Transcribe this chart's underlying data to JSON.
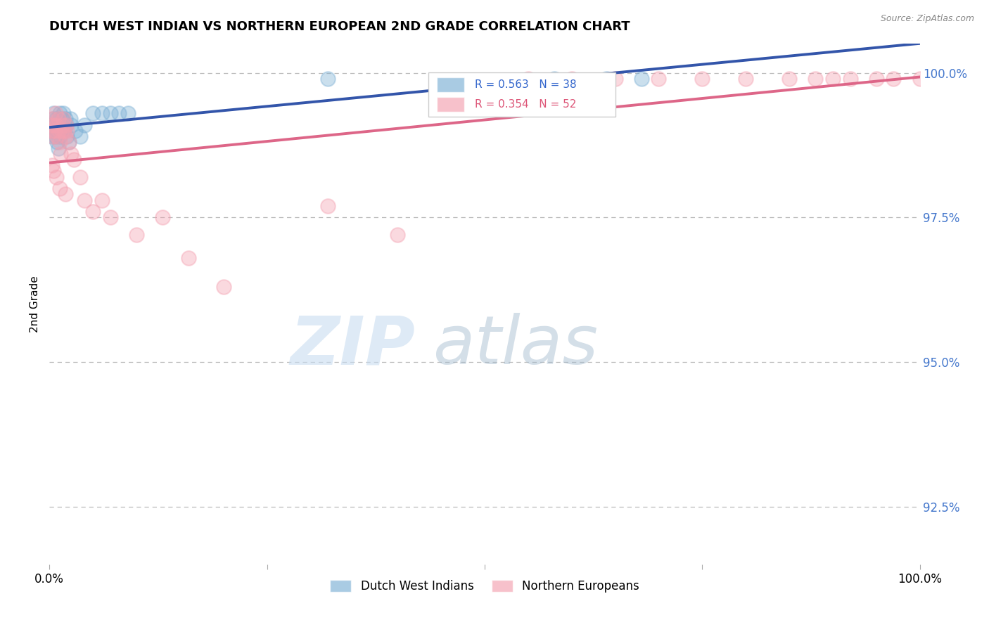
{
  "title": "DUTCH WEST INDIAN VS NORTHERN EUROPEAN 2ND GRADE CORRELATION CHART",
  "source": "Source: ZipAtlas.com",
  "ylabel": "2nd Grade",
  "legend_blue_r": "R = 0.563",
  "legend_blue_n": "N = 38",
  "legend_pink_r": "R = 0.354",
  "legend_pink_n": "N = 52",
  "blue_color": "#7BAFD4",
  "pink_color": "#F4A0B0",
  "blue_line_color": "#3355AA",
  "pink_line_color": "#DD6688",
  "background_color": "#FFFFFF",
  "grid_color": "#BBBBBB",
  "xlim": [
    0.0,
    1.0
  ],
  "ylim": [
    0.915,
    1.005
  ],
  "yticks": [
    0.925,
    0.95,
    0.975,
    1.0
  ],
  "ytick_labels": [
    "92.5%",
    "95.0%",
    "97.5%",
    "100.0%"
  ],
  "blue_x": [
    0.001,
    0.002,
    0.003,
    0.004,
    0.005,
    0.005,
    0.006,
    0.007,
    0.008,
    0.008,
    0.009,
    0.01,
    0.011,
    0.012,
    0.012,
    0.013,
    0.014,
    0.015,
    0.016,
    0.017,
    0.018,
    0.019,
    0.02,
    0.022,
    0.024,
    0.025,
    0.03,
    0.035,
    0.04,
    0.05,
    0.06,
    0.07,
    0.08,
    0.09,
    0.32,
    0.58,
    0.64,
    0.68
  ],
  "blue_y": [
    0.99,
    0.991,
    0.989,
    0.992,
    0.99,
    0.993,
    0.991,
    0.989,
    0.992,
    0.99,
    0.988,
    0.987,
    0.991,
    0.989,
    0.993,
    0.99,
    0.992,
    0.991,
    0.993,
    0.99,
    0.992,
    0.991,
    0.989,
    0.988,
    0.992,
    0.991,
    0.99,
    0.989,
    0.991,
    0.993,
    0.993,
    0.993,
    0.993,
    0.993,
    0.999,
    0.999,
    0.999,
    0.999
  ],
  "pink_x": [
    0.001,
    0.002,
    0.003,
    0.004,
    0.005,
    0.006,
    0.007,
    0.008,
    0.009,
    0.01,
    0.011,
    0.012,
    0.013,
    0.014,
    0.015,
    0.016,
    0.017,
    0.018,
    0.019,
    0.02,
    0.022,
    0.025,
    0.028,
    0.035,
    0.04,
    0.05,
    0.06,
    0.07,
    0.1,
    0.13,
    0.16,
    0.2,
    0.32,
    0.4,
    0.55,
    0.6,
    0.65,
    0.7,
    0.75,
    0.8,
    0.85,
    0.88,
    0.9,
    0.92,
    0.95,
    0.97,
    1.0,
    0.003,
    0.005,
    0.008,
    0.012,
    0.018
  ],
  "pink_y": [
    0.991,
    0.99,
    0.992,
    0.989,
    0.991,
    0.99,
    0.993,
    0.991,
    0.989,
    0.992,
    0.99,
    0.988,
    0.986,
    0.99,
    0.991,
    0.992,
    0.99,
    0.989,
    0.991,
    0.99,
    0.988,
    0.986,
    0.985,
    0.982,
    0.978,
    0.976,
    0.978,
    0.975,
    0.972,
    0.975,
    0.968,
    0.963,
    0.977,
    0.972,
    0.999,
    0.999,
    0.999,
    0.999,
    0.999,
    0.999,
    0.999,
    0.999,
    0.999,
    0.999,
    0.999,
    0.999,
    0.999,
    0.984,
    0.983,
    0.982,
    0.98,
    0.979
  ]
}
